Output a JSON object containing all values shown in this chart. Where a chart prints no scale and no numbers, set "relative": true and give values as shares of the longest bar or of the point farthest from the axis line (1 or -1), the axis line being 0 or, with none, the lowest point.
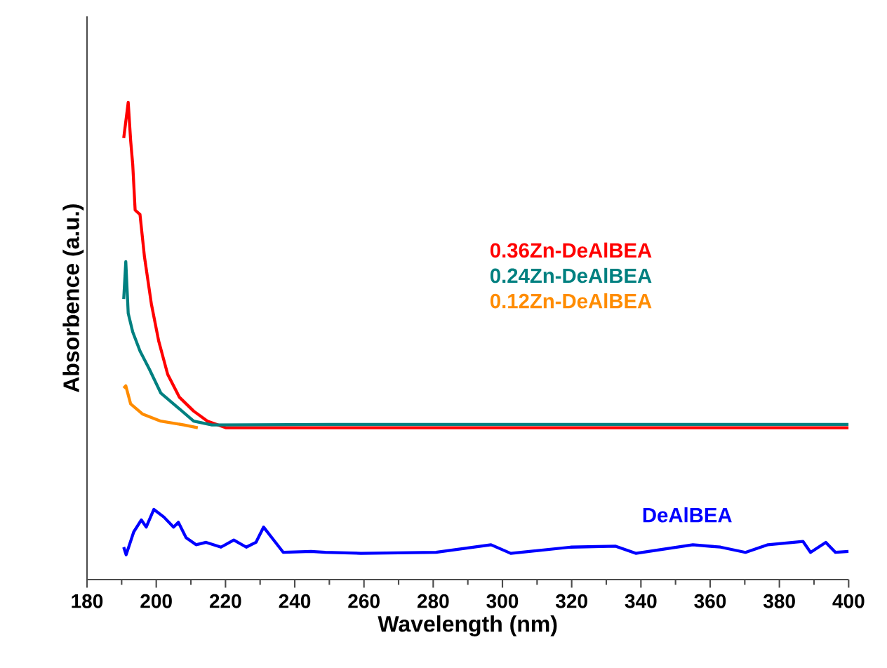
{
  "chart_data": {
    "type": "line",
    "xlabel": "Wavelength (nm)",
    "ylabel": "Absorbence (a.u.)",
    "relative": true,
    "marker": "none",
    "xlim": [
      180,
      400
    ],
    "xticks": [
      180,
      200,
      220,
      240,
      260,
      280,
      300,
      320,
      340,
      360,
      380,
      400
    ],
    "series": [
      {
        "name": "0.36Zn-DeAlBEA",
        "color": "#ff0000",
        "x": [
          190.6,
          191.9,
          192.6,
          193.2,
          193.9,
          195.3,
          196.6,
          198.6,
          200.7,
          203.3,
          206.7,
          210.8,
          214.8,
          220.2,
          250,
          300,
          350,
          400
        ],
        "values": [
          0.925,
          1.0,
          0.92,
          0.87,
          0.774,
          0.765,
          0.676,
          0.577,
          0.5,
          0.43,
          0.382,
          0.353,
          0.332,
          0.318,
          0.318,
          0.318,
          0.318,
          0.318
        ]
      },
      {
        "name": "0.24Zn-DeAlBEA",
        "color": "#008080",
        "x": [
          190.6,
          191.2,
          191.9,
          193.2,
          195.3,
          198,
          201.3,
          206,
          210.8,
          216.1,
          250,
          300,
          350,
          400
        ],
        "values": [
          0.588,
          0.666,
          0.558,
          0.519,
          0.479,
          0.441,
          0.391,
          0.362,
          0.332,
          0.324,
          0.325,
          0.325,
          0.325,
          0.325
        ]
      },
      {
        "name": "0.12Zn-DeAlBEA",
        "color": "#ff8c00",
        "x": [
          190.6,
          191.2,
          192.6,
          196,
          201.3,
          208,
          212
        ],
        "values": [
          0.401,
          0.406,
          0.368,
          0.347,
          0.332,
          0.324,
          0.318
        ]
      },
      {
        "name": "DeAlBEA",
        "color": "#0000ff",
        "x": [
          190.6,
          191.3,
          193.5,
          195.7,
          197.1,
          199.3,
          202.2,
          205,
          206.4,
          208.6,
          211.5,
          214.4,
          218.7,
          222.4,
          226,
          228.8,
          231,
          233.9,
          236.7,
          244.7,
          248.8,
          259.1,
          280.8,
          296.7,
          302.4,
          319.7,
          332.7,
          338.5,
          355,
          363,
          370.2,
          376.7,
          386.8,
          389,
          393.4,
          396.2,
          400
        ],
        "values": [
          0.068,
          0.052,
          0.1,
          0.125,
          0.11,
          0.147,
          0.131,
          0.11,
          0.12,
          0.088,
          0.073,
          0.078,
          0.068,
          0.083,
          0.068,
          0.078,
          0.11,
          0.083,
          0.057,
          0.059,
          0.057,
          0.055,
          0.057,
          0.073,
          0.055,
          0.068,
          0.07,
          0.055,
          0.073,
          0.068,
          0.057,
          0.073,
          0.08,
          0.057,
          0.078,
          0.057,
          0.059
        ]
      }
    ]
  }
}
